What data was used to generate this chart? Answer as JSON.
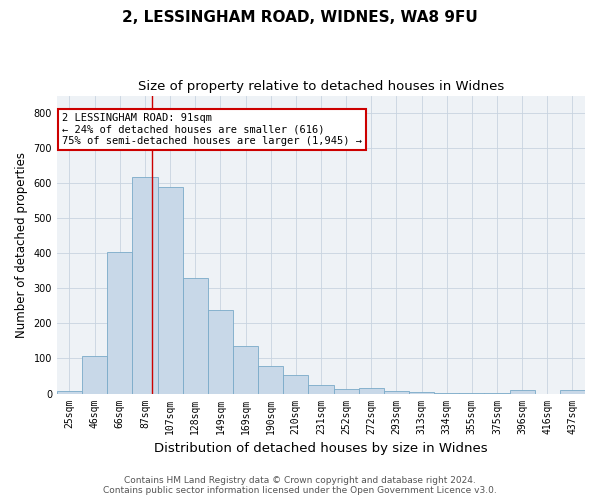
{
  "title1": "2, LESSINGHAM ROAD, WIDNES, WA8 9FU",
  "title2": "Size of property relative to detached houses in Widnes",
  "xlabel": "Distribution of detached houses by size in Widnes",
  "ylabel": "Number of detached properties",
  "categories": [
    "25sqm",
    "46sqm",
    "66sqm",
    "87sqm",
    "107sqm",
    "128sqm",
    "149sqm",
    "169sqm",
    "190sqm",
    "210sqm",
    "231sqm",
    "252sqm",
    "272sqm",
    "293sqm",
    "313sqm",
    "334sqm",
    "355sqm",
    "375sqm",
    "396sqm",
    "416sqm",
    "437sqm"
  ],
  "values": [
    8,
    107,
    403,
    617,
    590,
    330,
    238,
    135,
    79,
    52,
    23,
    14,
    17,
    8,
    4,
    2,
    1,
    1,
    9,
    0,
    9
  ],
  "bar_color": "#c8d8e8",
  "bar_edge_color": "#7aaac8",
  "red_line_x": 3.3,
  "annotation_line1": "2 LESSINGHAM ROAD: 91sqm",
  "annotation_line2": "← 24% of detached houses are smaller (616)",
  "annotation_line3": "75% of semi-detached houses are larger (1,945) →",
  "annotation_box_color": "#ffffff",
  "annotation_box_edge": "#cc0000",
  "red_line_color": "#cc0000",
  "footer1": "Contains HM Land Registry data © Crown copyright and database right 2024.",
  "footer2": "Contains public sector information licensed under the Open Government Licence v3.0.",
  "ylim": [
    0,
    850
  ],
  "yticks": [
    0,
    100,
    200,
    300,
    400,
    500,
    600,
    700,
    800
  ],
  "grid_color": "#c8d4e0",
  "background_color": "#eef2f6",
  "title1_fontsize": 11,
  "title2_fontsize": 9.5,
  "xlabel_fontsize": 9.5,
  "ylabel_fontsize": 8.5,
  "tick_fontsize": 7,
  "footer_fontsize": 6.5,
  "ann_fontsize": 7.5
}
